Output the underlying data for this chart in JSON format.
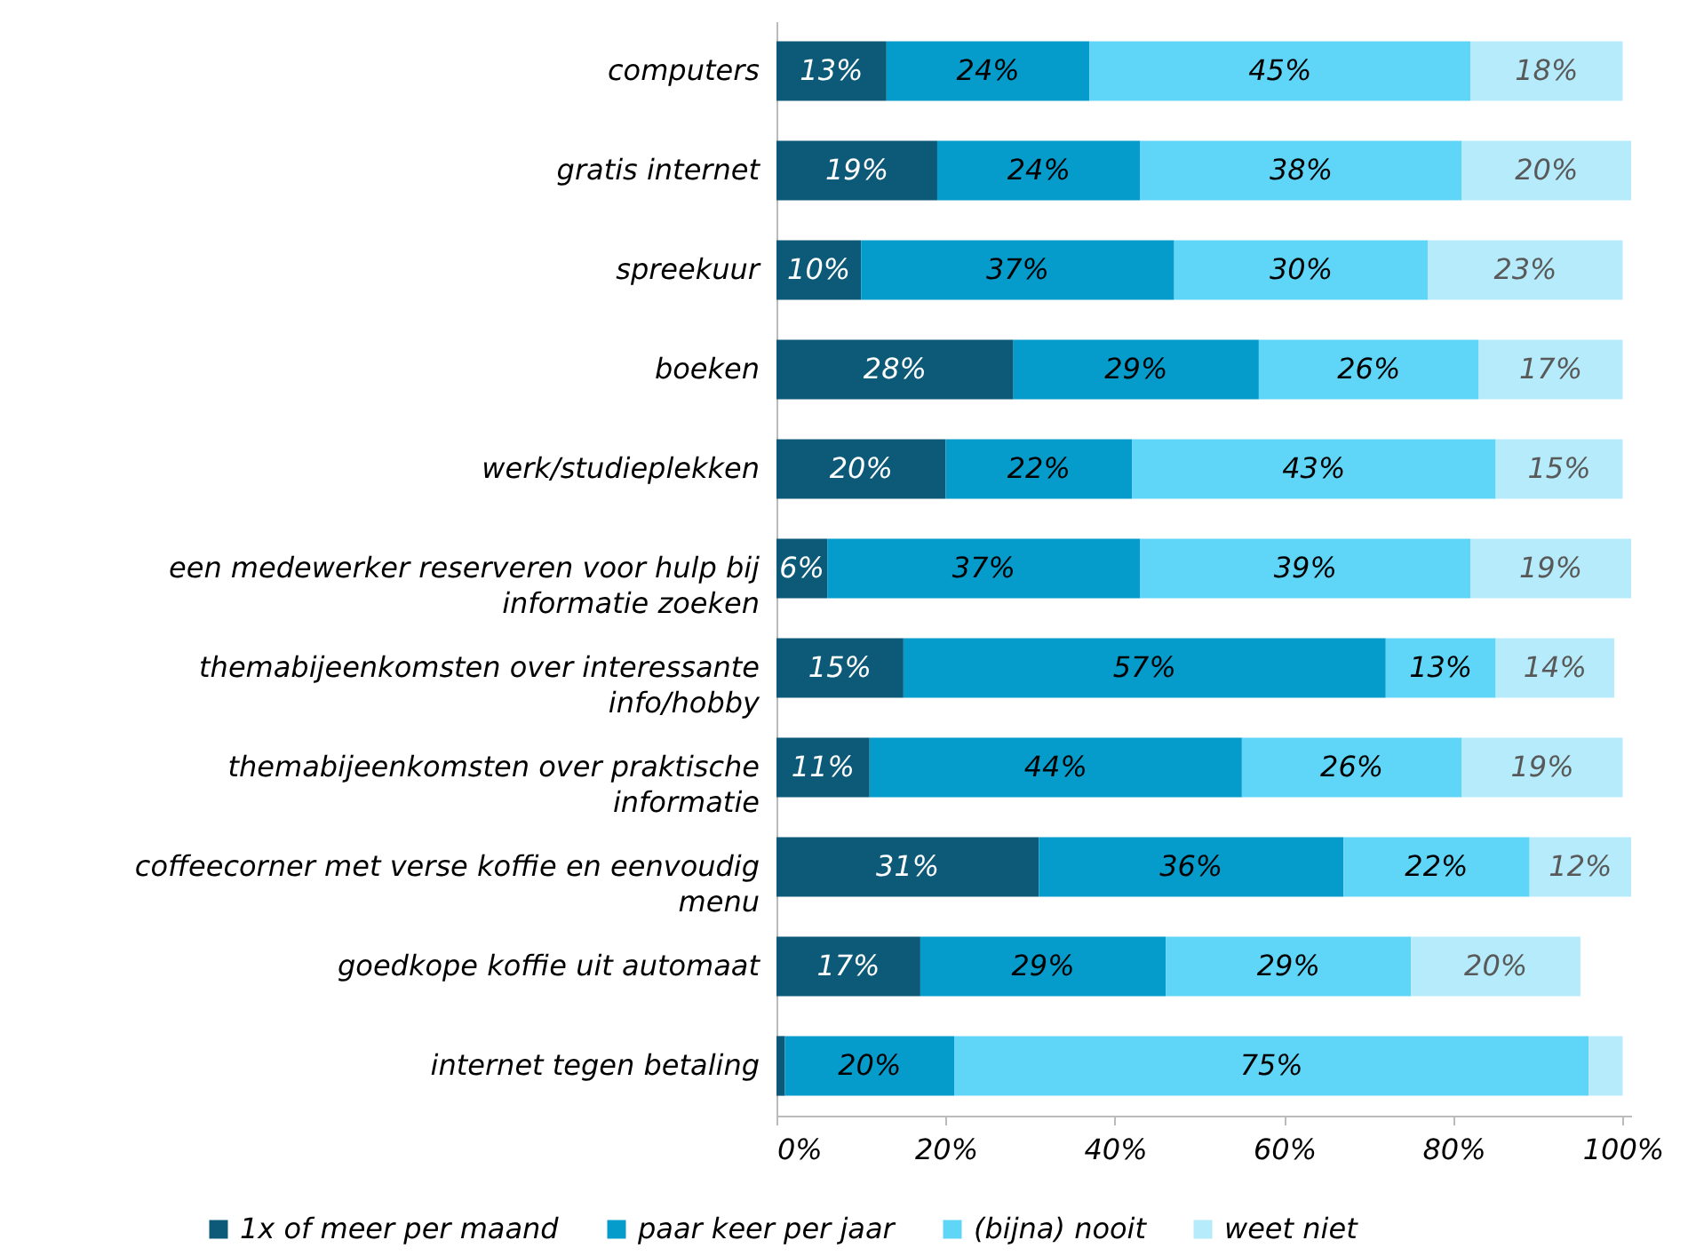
{
  "chart_data": {
    "type": "bar",
    "orientation": "horizontal",
    "stacked": true,
    "categories": [
      "computers",
      "gratis internet",
      "spreekuur",
      "boeken",
      "werk/studieplekken",
      "een medewerker reserveren voor hulp bij informatie zoeken",
      "themabijeenkomsten over interessante info/hobby",
      "themabijeenkomsten over praktische informatie",
      "coffeecorner met verse koffie en eenvoudig menu",
      "goedkope koffie uit automaat",
      "internet tegen betaling"
    ],
    "series": [
      {
        "name": "1x of meer per maand",
        "color": "#0d5a78",
        "values": [
          13,
          19,
          10,
          28,
          20,
          6,
          15,
          11,
          31,
          17,
          1
        ],
        "value_labels": [
          "13%",
          "19%",
          "10%",
          "28%",
          "20%",
          "6%",
          "15%",
          "11%",
          "31%",
          "17%",
          null
        ]
      },
      {
        "name": "paar keer per jaar",
        "color": "#059ccc",
        "values": [
          24,
          24,
          37,
          29,
          22,
          37,
          57,
          44,
          36,
          29,
          20
        ],
        "value_labels": [
          "24%",
          "24%",
          "37%",
          "29%",
          "22%",
          "37%",
          "57%",
          "44%",
          "36%",
          "29%",
          "20%"
        ]
      },
      {
        "name": "(bijna) nooit",
        "color": "#5fd6f8",
        "values": [
          45,
          38,
          30,
          26,
          43,
          39,
          13,
          26,
          22,
          29,
          75
        ],
        "value_labels": [
          "45%",
          "38%",
          "30%",
          "26%",
          "43%",
          "39%",
          "13%",
          "26%",
          "22%",
          "29%",
          "75%"
        ]
      },
      {
        "name": "weet niet",
        "color": "#b5ebfa",
        "values": [
          18,
          20,
          23,
          17,
          15,
          19,
          14,
          19,
          12,
          20,
          4
        ],
        "value_labels": [
          "18%",
          "20%",
          "23%",
          "17%",
          "15%",
          "19%",
          "14%",
          "19%",
          "12%",
          "20%",
          null
        ]
      }
    ],
    "xlim": [
      0,
      101
    ],
    "xticks": [
      {
        "value": 0,
        "label": "0%"
      },
      {
        "value": 20,
        "label": "20%"
      },
      {
        "value": 40,
        "label": "40%"
      },
      {
        "value": 60,
        "label": "60%"
      },
      {
        "value": 80,
        "label": "80%"
      },
      {
        "value": 100,
        "label": "100%"
      }
    ],
    "legend": "bottom"
  }
}
